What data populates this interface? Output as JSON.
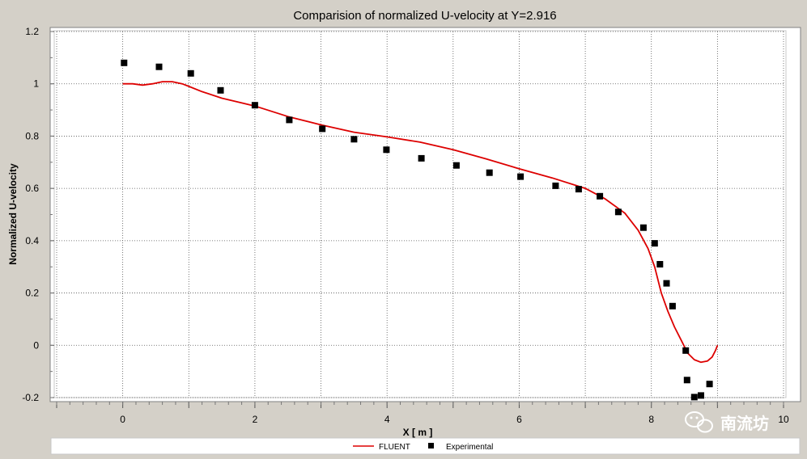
{
  "chart_data": {
    "type": "scatter",
    "title": "Comparision of normalized U-velocity at Y=2.916",
    "xlabel": "X [ m ]",
    "ylabel": "Normalized U-velocity",
    "xlim": [
      -1,
      10
    ],
    "ylim": [
      -0.2,
      1.2
    ],
    "xticks": [
      -1,
      0,
      1,
      2,
      3,
      4,
      5,
      6,
      7,
      8,
      9,
      10
    ],
    "xtick_labels": [
      "",
      "0",
      "",
      "2",
      "",
      "4",
      "",
      "6",
      "",
      "8",
      "",
      "10"
    ],
    "yticks": [
      -0.2,
      0,
      0.2,
      0.4,
      0.6,
      0.8,
      1,
      1.2
    ],
    "ytick_labels": [
      "-0.2",
      "0",
      "0.2",
      "0.4",
      "0.6",
      "0.8",
      "1",
      "1.2"
    ],
    "grid": true,
    "legend_position": "bottom",
    "series": [
      {
        "name": "FLUENT",
        "kind": "line",
        "color": "#dd0000",
        "x": [
          0,
          0.15,
          0.3,
          0.45,
          0.6,
          0.75,
          0.9,
          1.0,
          1.2,
          1.5,
          2.0,
          2.5,
          3.0,
          3.5,
          4.0,
          4.5,
          5.0,
          5.5,
          6.0,
          6.5,
          7.0,
          7.3,
          7.6,
          7.8,
          7.95,
          8.05,
          8.15,
          8.25,
          8.35,
          8.45,
          8.55,
          8.65,
          8.75,
          8.85,
          8.92,
          8.97,
          9.0
        ],
        "y": [
          1.0,
          1.0,
          0.995,
          1.0,
          1.008,
          1.008,
          1.0,
          0.99,
          0.97,
          0.945,
          0.915,
          0.875,
          0.843,
          0.815,
          0.797,
          0.777,
          0.748,
          0.713,
          0.675,
          0.64,
          0.6,
          0.56,
          0.505,
          0.44,
          0.37,
          0.3,
          0.2,
          0.13,
          0.07,
          0.02,
          -0.03,
          -0.055,
          -0.065,
          -0.06,
          -0.045,
          -0.02,
          0.0
        ]
      },
      {
        "name": "Experimental",
        "kind": "scatter",
        "marker": "square",
        "color": "#000000",
        "x": [
          0.02,
          0.55,
          1.03,
          1.48,
          2.0,
          2.52,
          3.02,
          3.5,
          3.99,
          4.52,
          5.05,
          5.55,
          6.02,
          6.55,
          6.9,
          7.22,
          7.5,
          7.88,
          8.05,
          8.13,
          8.23,
          8.32,
          8.52,
          8.54,
          8.65,
          8.75,
          8.88
        ],
        "y": [
          1.08,
          1.065,
          1.04,
          0.975,
          0.918,
          0.862,
          0.828,
          0.788,
          0.748,
          0.715,
          0.688,
          0.66,
          0.645,
          0.61,
          0.597,
          0.57,
          0.51,
          0.45,
          0.39,
          0.31,
          0.237,
          0.15,
          -0.02,
          -0.133,
          -0.198,
          -0.192,
          -0.148
        ]
      }
    ]
  },
  "watermark": {
    "text": "南流坊",
    "icon": "wechat-icon"
  }
}
